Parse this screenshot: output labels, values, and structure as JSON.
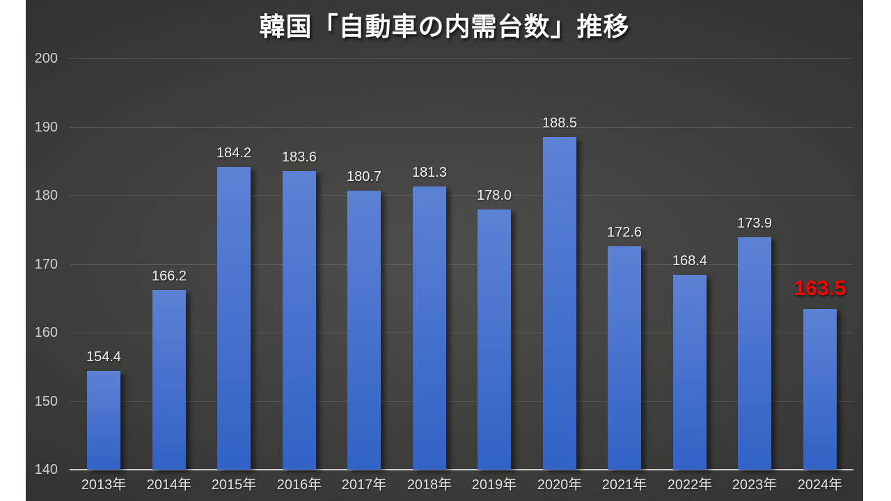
{
  "chart_data": {
    "type": "bar",
    "title": "韓国「自動車の内需台数」推移",
    "categories": [
      "2013年",
      "2014年",
      "2015年",
      "2016年",
      "2017年",
      "2018年",
      "2019年",
      "2020年",
      "2021年",
      "2022年",
      "2023年",
      "2024年"
    ],
    "values": [
      154.4,
      166.2,
      184.2,
      183.6,
      180.7,
      181.3,
      178.0,
      188.5,
      172.6,
      168.4,
      173.9,
      163.5
    ],
    "value_label_decimals": 1,
    "ylim": [
      140,
      200
    ],
    "yticks": [
      140,
      150,
      160,
      170,
      180,
      190,
      200
    ],
    "grid": true,
    "legend": false,
    "xlabel": "",
    "ylabel": "",
    "colors": {
      "bar_top": "#5d82d5",
      "bar_bottom": "#3162c6",
      "highlight_label": "#ff0000",
      "value_label": "#f2f2f2",
      "axis_tick_label": "#cfcfcf",
      "axis_line": "#cfcfcf",
      "title": "#ffffff",
      "slide_bg_center": "#4e4e4c",
      "slide_bg_edge": "#242424",
      "page_margin": "#ffffff"
    },
    "highlight_index": 11
  }
}
